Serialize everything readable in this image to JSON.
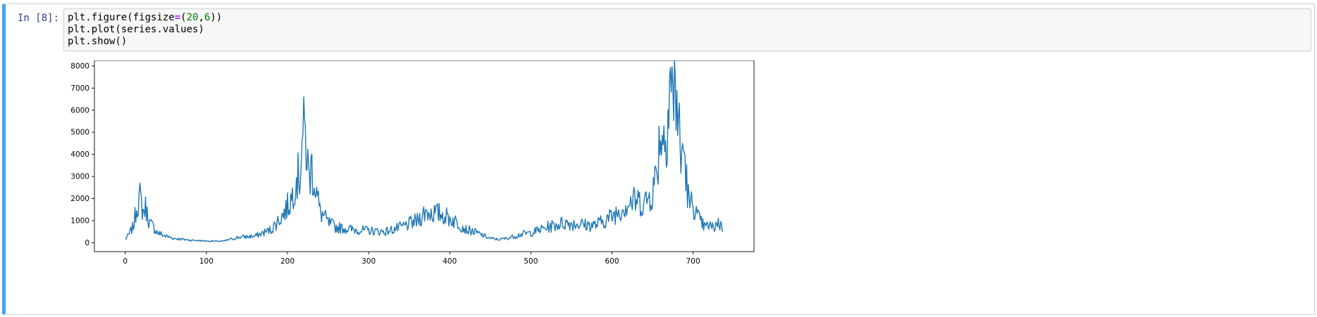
{
  "cell": {
    "prompt": "In [8]:",
    "code_lines": [
      [
        {
          "t": "plt.figure(figsize"
        },
        {
          "t": "=",
          "c": "op"
        },
        {
          "t": "("
        },
        {
          "t": "20",
          "c": "num"
        },
        {
          "t": ","
        },
        {
          "t": "6",
          "c": "num"
        },
        {
          "t": "))"
        }
      ],
      [
        {
          "t": "plt.plot(series.values)"
        }
      ],
      [
        {
          "t": "plt.show()"
        }
      ]
    ]
  },
  "colors": {
    "cell_accent": "#42a5f5",
    "prompt": "#303f9f",
    "line": "#1f77b4",
    "code_operator": "#aa22ff",
    "code_number": "#008000"
  },
  "chart_data": {
    "type": "line",
    "title": "",
    "xlabel": "",
    "ylabel": "",
    "xlim": [
      -38,
      775
    ],
    "ylim": [
      -400,
      8250
    ],
    "xticks": [
      0,
      100,
      200,
      300,
      400,
      500,
      600,
      700
    ],
    "yticks": [
      0,
      1000,
      2000,
      3000,
      4000,
      5000,
      6000,
      7000,
      8000
    ],
    "grid": false,
    "series": [
      {
        "x_start": 0,
        "x_step": 1,
        "count": 737,
        "keypoints": [
          [
            0,
            150
          ],
          [
            5,
            400
          ],
          [
            10,
            750
          ],
          [
            15,
            1800
          ],
          [
            18,
            2050
          ],
          [
            22,
            1400
          ],
          [
            25,
            1600
          ],
          [
            30,
            900
          ],
          [
            35,
            700
          ],
          [
            40,
            450
          ],
          [
            50,
            300
          ],
          [
            60,
            200
          ],
          [
            80,
            120
          ],
          [
            100,
            80
          ],
          [
            120,
            70
          ],
          [
            140,
            250
          ],
          [
            160,
            300
          ],
          [
            180,
            600
          ],
          [
            195,
            1300
          ],
          [
            205,
            2000
          ],
          [
            210,
            2950
          ],
          [
            215,
            3000
          ],
          [
            218,
            4800
          ],
          [
            222,
            4900
          ],
          [
            226,
            3000
          ],
          [
            230,
            3400
          ],
          [
            235,
            2500
          ],
          [
            240,
            1400
          ],
          [
            245,
            1200
          ],
          [
            250,
            900
          ],
          [
            260,
            700
          ],
          [
            280,
            600
          ],
          [
            300,
            550
          ],
          [
            320,
            500
          ],
          [
            340,
            700
          ],
          [
            360,
            1000
          ],
          [
            370,
            1400
          ],
          [
            380,
            1350
          ],
          [
            390,
            1300
          ],
          [
            400,
            1100
          ],
          [
            410,
            900
          ],
          [
            420,
            600
          ],
          [
            430,
            500
          ],
          [
            440,
            350
          ],
          [
            450,
            200
          ],
          [
            460,
            150
          ],
          [
            470,
            200
          ],
          [
            480,
            300
          ],
          [
            490,
            400
          ],
          [
            500,
            450
          ],
          [
            520,
            700
          ],
          [
            540,
            900
          ],
          [
            560,
            850
          ],
          [
            570,
            800
          ],
          [
            580,
            800
          ],
          [
            590,
            1000
          ],
          [
            600,
            1200
          ],
          [
            610,
            1500
          ],
          [
            620,
            1800
          ],
          [
            630,
            1900
          ],
          [
            640,
            1800
          ],
          [
            650,
            2300
          ],
          [
            655,
            3200
          ],
          [
            660,
            5200
          ],
          [
            665,
            4600
          ],
          [
            668,
            5700
          ],
          [
            672,
            7800
          ],
          [
            676,
            6000
          ],
          [
            678,
            7400
          ],
          [
            682,
            5500
          ],
          [
            685,
            3500
          ],
          [
            688,
            4500
          ],
          [
            692,
            2800
          ],
          [
            695,
            1700
          ],
          [
            700,
            1800
          ],
          [
            705,
            1200
          ],
          [
            710,
            900
          ],
          [
            715,
            700
          ],
          [
            720,
            800
          ],
          [
            725,
            650
          ],
          [
            730,
            950
          ],
          [
            736,
            700
          ]
        ]
      }
    ]
  }
}
